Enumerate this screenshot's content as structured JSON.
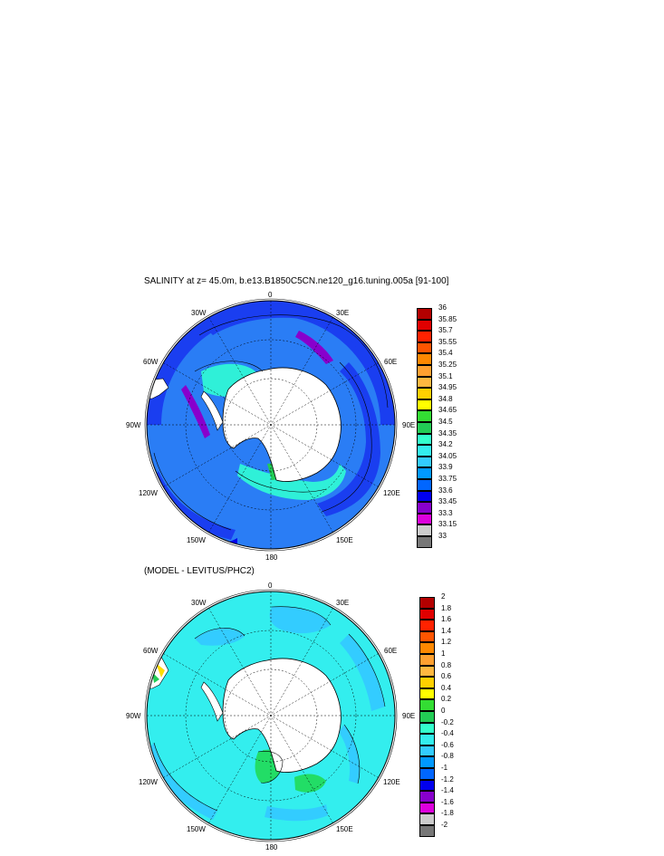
{
  "panels": [
    {
      "title": "SALINITY at z=  45.0m, b.e13.B1850C5CN.ne120_g16.tuning.005a [91-100]",
      "lon_labels": {
        "top": "0",
        "bottom": "180",
        "left": "90W",
        "right": "90E",
        "tl": "30W",
        "tr": "30E",
        "ul": "60W",
        "ur": "60E",
        "ll": "120W",
        "lr": "120E",
        "bl": "150W",
        "br": "150E"
      },
      "colorbar": {
        "labels": [
          "36",
          "35.85",
          "35.7",
          "35.55",
          "35.4",
          "35.25",
          "35.1",
          "34.95",
          "34.8",
          "34.65",
          "34.5",
          "34.35",
          "34.2",
          "34.05",
          "33.9",
          "33.75",
          "33.6",
          "33.45",
          "33.3",
          "33.15",
          "33"
        ],
        "colors": [
          "#b30000",
          "#e00000",
          "#ff2200",
          "#ff5500",
          "#ff8800",
          "#ffa030",
          "#ffb840",
          "#ffd000",
          "#ffff00",
          "#33dd33",
          "#22cc55",
          "#33ffcc",
          "#33eeee",
          "#33ccff",
          "#0099ff",
          "#0066ff",
          "#0000ee",
          "#8800cc",
          "#dd00dd",
          "#cccccc",
          "#777777"
        ]
      }
    },
    {
      "title": "(MODEL - LEVITUS/PHC2)",
      "lon_labels": {
        "top": "0",
        "bottom": "180",
        "left": "90W",
        "right": "90E",
        "tl": "30W",
        "tr": "30E",
        "ul": "60W",
        "ur": "60E",
        "ll": "120W",
        "lr": "120E",
        "bl": "150W",
        "br": "150E"
      },
      "colorbar": {
        "labels": [
          "2",
          "1.8",
          "1.6",
          "1.4",
          "1.2",
          "1",
          "0.8",
          "0.6",
          "0.4",
          "0.2",
          "0",
          "-0.2",
          "-0.4",
          "-0.6",
          "-0.8",
          "-1",
          "-1.2",
          "-1.4",
          "-1.6",
          "-1.8",
          "-2"
        ],
        "colors": [
          "#b30000",
          "#e00000",
          "#ff2200",
          "#ff5500",
          "#ff8800",
          "#ffa030",
          "#ffb840",
          "#ffd000",
          "#ffff00",
          "#33dd33",
          "#22cc55",
          "#33ffcc",
          "#33eeee",
          "#33ccff",
          "#0099ff",
          "#0066ff",
          "#0000ee",
          "#8800cc",
          "#dd00dd",
          "#cccccc",
          "#777777"
        ]
      }
    }
  ],
  "map_colors": {
    "panel1_base": "#2a7df5",
    "panel1_outer": "#1a3ef0",
    "panel1_shelf": "#2ff0d8",
    "panel1_low": "#8800cc",
    "panel2_base": "#33eeee",
    "panel2_mid": "#33ccff",
    "panel2_pos": "#22dd66",
    "land": "#ffffff"
  }
}
